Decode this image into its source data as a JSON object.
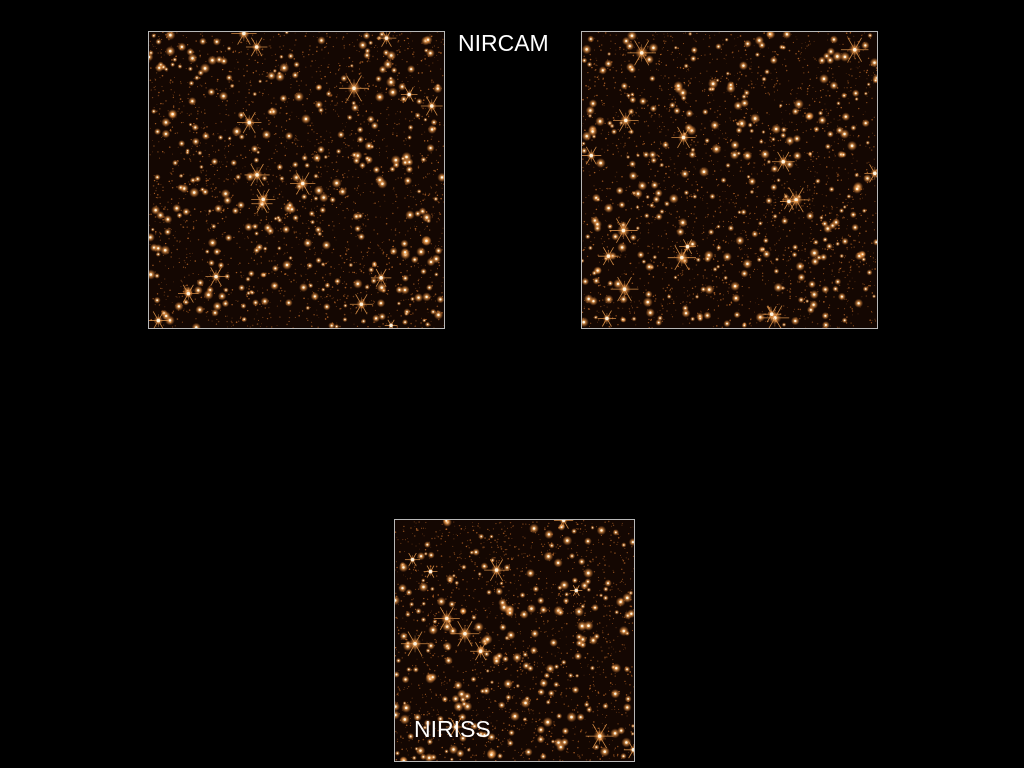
{
  "labels": {
    "nircam": "NIRCAM",
    "niriss": "NIRISS"
  },
  "colors": {
    "background": "#000000",
    "field": "#140702",
    "star_core": "#fff4e0",
    "star_glow": "#f0a050",
    "star_dim": "#c8702c",
    "frame": "#b8b8b8"
  },
  "panels": [
    {
      "name": "nircam-left-field",
      "seed": 11,
      "density": 1.0
    },
    {
      "name": "nircam-right-field",
      "seed": 29,
      "density": 1.0
    },
    {
      "name": "niriss-field",
      "seed": 47,
      "density": 1.1
    }
  ]
}
